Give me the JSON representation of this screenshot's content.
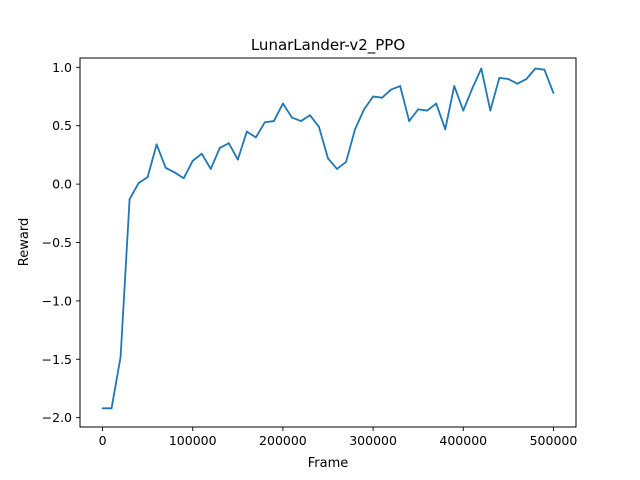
{
  "chart_data": {
    "type": "line",
    "title": "LunarLander-v2_PPO",
    "xlabel": "Frame",
    "ylabel": "Reward",
    "xlim": [
      -25000,
      525000
    ],
    "ylim": [
      -2.08,
      1.08
    ],
    "grid": false,
    "x_ticks": [
      0,
      100000,
      200000,
      300000,
      400000,
      500000
    ],
    "x_tick_labels": [
      "0",
      "100000",
      "200000",
      "300000",
      "400000",
      "500000"
    ],
    "y_ticks": [
      -2.0,
      -1.5,
      -1.0,
      -0.5,
      0.0,
      0.5,
      1.0
    ],
    "y_tick_labels": [
      "−2.0",
      "−1.5",
      "−1.0",
      "−0.5",
      "0.0",
      "0.5",
      "1.0"
    ],
    "series": [
      {
        "color": "#1f77b4",
        "x": [
          0,
          10000,
          20000,
          30000,
          40000,
          50000,
          60000,
          70000,
          80000,
          90000,
          100000,
          110000,
          120000,
          130000,
          140000,
          150000,
          160000,
          170000,
          180000,
          190000,
          200000,
          210000,
          220000,
          230000,
          240000,
          250000,
          260000,
          270000,
          280000,
          290000,
          300000,
          310000,
          320000,
          330000,
          340000,
          350000,
          360000,
          370000,
          380000,
          390000,
          400000,
          410000,
          420000,
          430000,
          440000,
          450000,
          460000,
          470000,
          480000,
          490000,
          500000
        ],
        "values": [
          -1.92,
          -1.92,
          -1.48,
          -0.13,
          0.01,
          0.06,
          0.34,
          0.14,
          0.1,
          0.05,
          0.2,
          0.26,
          0.13,
          0.31,
          0.35,
          0.21,
          0.45,
          0.4,
          0.53,
          0.54,
          0.69,
          0.57,
          0.54,
          0.59,
          0.49,
          0.22,
          0.13,
          0.19,
          0.47,
          0.64,
          0.75,
          0.74,
          0.81,
          0.84,
          0.54,
          0.64,
          0.63,
          0.69,
          0.47,
          0.84,
          0.63,
          0.82,
          0.99,
          0.63,
          0.91,
          0.9,
          0.86,
          0.9,
          0.99,
          0.98,
          0.78
        ]
      }
    ]
  }
}
